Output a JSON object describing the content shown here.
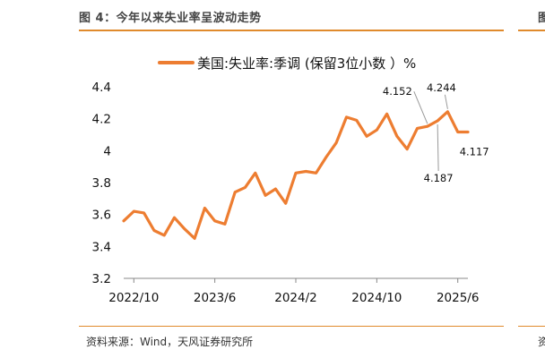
{
  "figure": {
    "title": "图 4：今年以来失业率呈波动走势",
    "source": "资料来源：Wind，天风证券研究所",
    "right_fragment_top": "图",
    "right_fragment_bottom": "资"
  },
  "colors": {
    "accent": "#ed7d31",
    "rule": "#e08a2c",
    "callout": "#999999"
  },
  "chart_data": {
    "type": "line",
    "title": "",
    "xlabel": "",
    "ylabel": "",
    "ylim": [
      3.2,
      4.4
    ],
    "yticks": [
      "3.2",
      "3.4",
      "3.6",
      "3.8",
      "4",
      "4.2",
      "4.4"
    ],
    "xticks": [
      "2022/10",
      "2023/6",
      "2024/2",
      "2024/10",
      "2025/6"
    ],
    "grid": false,
    "legend_placement": "top",
    "x": [
      "2022/9",
      "2022/10",
      "2022/11",
      "2022/12",
      "2023/1",
      "2023/2",
      "2023/3",
      "2023/4",
      "2023/5",
      "2023/6",
      "2023/7",
      "2023/8",
      "2023/9",
      "2023/10",
      "2023/11",
      "2023/12",
      "2024/1",
      "2024/2",
      "2024/3",
      "2024/4",
      "2024/5",
      "2024/6",
      "2024/7",
      "2024/8",
      "2024/9",
      "2024/10",
      "2024/11",
      "2024/12",
      "2025/1",
      "2025/2",
      "2025/3",
      "2025/4",
      "2025/5",
      "2025/6",
      "2025/7"
    ],
    "series": [
      {
        "name": "美国:失业率:季调 (保留3位小数 ）%",
        "color": "#ed7d31",
        "values": [
          3.56,
          3.62,
          3.61,
          3.5,
          3.47,
          3.58,
          3.51,
          3.45,
          3.64,
          3.56,
          3.54,
          3.74,
          3.77,
          3.86,
          3.72,
          3.76,
          3.67,
          3.86,
          3.87,
          3.86,
          3.96,
          4.05,
          4.21,
          4.19,
          4.09,
          4.13,
          4.23,
          4.09,
          4.01,
          4.14,
          4.152,
          4.187,
          4.244,
          4.117,
          4.117
        ]
      }
    ],
    "annotations": [
      {
        "text": "4.152",
        "x": "2025/3",
        "placement": "above-left"
      },
      {
        "text": "4.187",
        "x": "2025/4",
        "placement": "below"
      },
      {
        "text": "4.244",
        "x": "2025/5",
        "placement": "above"
      },
      {
        "text": "4.117",
        "x": "2025/6",
        "placement": "right"
      }
    ]
  }
}
